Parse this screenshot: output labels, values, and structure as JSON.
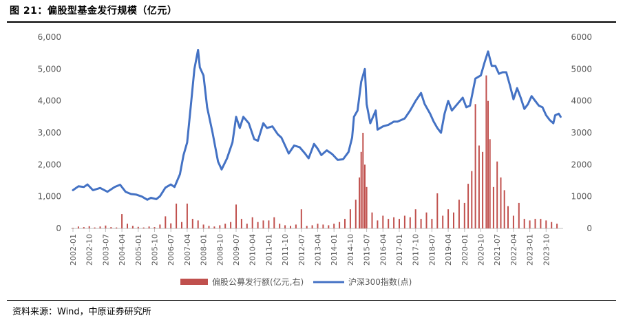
{
  "page": {
    "title": "图 21：偏股型基金发行规模（亿元）",
    "source": "资料来源：Wind，中原证券研究所"
  },
  "colors": {
    "line": "#4472C4",
    "bar": "#C0504D",
    "axis": "#BFBFBF",
    "text": "#595959"
  },
  "chart_data": {
    "type": "bar+line",
    "title": "偏股型基金发行规模（亿元）",
    "xlabel": "",
    "ylabel": "",
    "ylim_left": [
      0,
      6000
    ],
    "ylim_right": [
      0,
      6000
    ],
    "y_ticks_left": [
      "0",
      "1,000",
      "2,000",
      "3,000",
      "4,000",
      "5,000",
      "6,000"
    ],
    "y_ticks_right": [
      "0",
      "1000",
      "2000",
      "3000",
      "4000",
      "5000",
      "6000"
    ],
    "x_ticks": [
      "2002-01",
      "2002-10",
      "2003-07",
      "2004-04",
      "2005-01",
      "2005-10",
      "2006-07",
      "2007-04",
      "2008-01",
      "2008-10",
      "2009-07",
      "2010-04",
      "2011-01",
      "2011-10",
      "2012-07",
      "2013-04",
      "2014-01",
      "2014-10",
      "2015-07",
      "2016-04",
      "2017-01",
      "2017-10",
      "2018-07",
      "2019-04",
      "2020-01",
      "2020-10",
      "2021-07",
      "2022-04",
      "2023-01",
      "2023-10"
    ],
    "legend": [
      "偏股公募发行额(亿元,右)",
      "沪深300指数(点)"
    ],
    "legend_position": "bottom",
    "series": [
      {
        "name": "沪深300指数(点)",
        "type": "line",
        "axis": "left",
        "points": [
          [
            "2002-01",
            1200
          ],
          [
            "2002-04",
            1320
          ],
          [
            "2002-07",
            1300
          ],
          [
            "2002-09",
            1380
          ],
          [
            "2002-12",
            1200
          ],
          [
            "2003-04",
            1270
          ],
          [
            "2003-08",
            1150
          ],
          [
            "2003-12",
            1300
          ],
          [
            "2004-03",
            1370
          ],
          [
            "2004-06",
            1150
          ],
          [
            "2004-09",
            1080
          ],
          [
            "2004-12",
            1060
          ],
          [
            "2005-03",
            1000
          ],
          [
            "2005-06",
            900
          ],
          [
            "2005-08",
            960
          ],
          [
            "2005-11",
            920
          ],
          [
            "2006-01",
            1010
          ],
          [
            "2006-04",
            1280
          ],
          [
            "2006-07",
            1380
          ],
          [
            "2006-09",
            1300
          ],
          [
            "2006-12",
            1700
          ],
          [
            "2007-02",
            2300
          ],
          [
            "2007-04",
            2700
          ],
          [
            "2007-06",
            3850
          ],
          [
            "2007-08",
            5000
          ],
          [
            "2007-10",
            5600
          ],
          [
            "2007-11",
            5050
          ],
          [
            "2008-01",
            4800
          ],
          [
            "2008-03",
            3800
          ],
          [
            "2008-06",
            3000
          ],
          [
            "2008-09",
            2100
          ],
          [
            "2008-11",
            1850
          ],
          [
            "2009-02",
            2200
          ],
          [
            "2009-05",
            2700
          ],
          [
            "2009-07",
            3500
          ],
          [
            "2009-09",
            3150
          ],
          [
            "2009-11",
            3500
          ],
          [
            "2010-02",
            3300
          ],
          [
            "2010-05",
            2800
          ],
          [
            "2010-07",
            2750
          ],
          [
            "2010-10",
            3300
          ],
          [
            "2010-12",
            3150
          ],
          [
            "2011-03",
            3200
          ],
          [
            "2011-06",
            2950
          ],
          [
            "2011-08",
            2850
          ],
          [
            "2011-10",
            2600
          ],
          [
            "2011-12",
            2350
          ],
          [
            "2012-03",
            2600
          ],
          [
            "2012-06",
            2550
          ],
          [
            "2012-09",
            2350
          ],
          [
            "2012-11",
            2200
          ],
          [
            "2013-02",
            2650
          ],
          [
            "2013-04",
            2500
          ],
          [
            "2013-06",
            2300
          ],
          [
            "2013-09",
            2450
          ],
          [
            "2013-12",
            2330
          ],
          [
            "2014-03",
            2150
          ],
          [
            "2014-06",
            2170
          ],
          [
            "2014-09",
            2400
          ],
          [
            "2014-11",
            2850
          ],
          [
            "2014-12",
            3500
          ],
          [
            "2015-02",
            3700
          ],
          [
            "2015-04",
            4600
          ],
          [
            "2015-06",
            5000
          ],
          [
            "2015-07",
            3900
          ],
          [
            "2015-09",
            3300
          ],
          [
            "2015-12",
            3700
          ],
          [
            "2016-01",
            3100
          ],
          [
            "2016-04",
            3200
          ],
          [
            "2016-07",
            3250
          ],
          [
            "2016-10",
            3350
          ],
          [
            "2016-12",
            3350
          ],
          [
            "2017-04",
            3450
          ],
          [
            "2017-07",
            3700
          ],
          [
            "2017-10",
            4000
          ],
          [
            "2018-01",
            4250
          ],
          [
            "2018-03",
            3900
          ],
          [
            "2018-06",
            3600
          ],
          [
            "2018-08",
            3350
          ],
          [
            "2018-10",
            3150
          ],
          [
            "2018-12",
            3000
          ],
          [
            "2019-02",
            3600
          ],
          [
            "2019-04",
            4000
          ],
          [
            "2019-06",
            3700
          ],
          [
            "2019-09",
            3900
          ],
          [
            "2019-12",
            4100
          ],
          [
            "2020-02",
            3800
          ],
          [
            "2020-04",
            3850
          ],
          [
            "2020-07",
            4700
          ],
          [
            "2020-10",
            4800
          ],
          [
            "2020-12",
            5200
          ],
          [
            "2021-02",
            5550
          ],
          [
            "2021-04",
            5100
          ],
          [
            "2021-06",
            5100
          ],
          [
            "2021-08",
            4850
          ],
          [
            "2021-10",
            4900
          ],
          [
            "2021-12",
            4900
          ],
          [
            "2022-02",
            4500
          ],
          [
            "2022-04",
            4050
          ],
          [
            "2022-06",
            4400
          ],
          [
            "2022-08",
            4100
          ],
          [
            "2022-10",
            3750
          ],
          [
            "2022-12",
            3900
          ],
          [
            "2023-02",
            4150
          ],
          [
            "2023-04",
            4000
          ],
          [
            "2023-06",
            3850
          ],
          [
            "2023-08",
            3800
          ],
          [
            "2023-10",
            3550
          ],
          [
            "2023-12",
            3400
          ],
          [
            "2024-02",
            3300
          ],
          [
            "2024-03",
            3550
          ],
          [
            "2024-05",
            3600
          ],
          [
            "2024-06",
            3500
          ]
        ]
      },
      {
        "name": "偏股公募发行额(亿元,右)",
        "type": "bar",
        "axis": "right",
        "x": [
          "2002-01",
          "2002-04",
          "2002-07",
          "2002-10",
          "2003-01",
          "2003-04",
          "2003-07",
          "2003-10",
          "2004-01",
          "2004-04",
          "2004-07",
          "2004-10",
          "2005-01",
          "2005-04",
          "2005-07",
          "2005-10",
          "2006-01",
          "2006-04",
          "2006-07",
          "2006-10",
          "2007-01",
          "2007-04",
          "2007-07",
          "2007-10",
          "2008-01",
          "2008-04",
          "2008-07",
          "2008-10",
          "2009-01",
          "2009-04",
          "2009-07",
          "2009-10",
          "2010-01",
          "2010-04",
          "2010-07",
          "2010-10",
          "2011-01",
          "2011-04",
          "2011-07",
          "2011-10",
          "2012-01",
          "2012-04",
          "2012-07",
          "2012-10",
          "2013-01",
          "2013-04",
          "2013-07",
          "2013-10",
          "2014-01",
          "2014-04",
          "2014-07",
          "2014-10",
          "2015-01",
          "2015-03",
          "2015-04",
          "2015-05",
          "2015-06",
          "2015-07",
          "2015-10",
          "2016-01",
          "2016-04",
          "2016-07",
          "2016-10",
          "2017-01",
          "2017-04",
          "2017-07",
          "2017-10",
          "2018-01",
          "2018-04",
          "2018-07",
          "2018-10",
          "2019-01",
          "2019-04",
          "2019-07",
          "2019-10",
          "2020-01",
          "2020-03",
          "2020-05",
          "2020-07",
          "2020-09",
          "2020-11",
          "2021-01",
          "2021-02",
          "2021-03",
          "2021-05",
          "2021-07",
          "2021-09",
          "2021-11",
          "2022-01",
          "2022-04",
          "2022-07",
          "2022-10",
          "2023-01",
          "2023-04",
          "2023-07",
          "2023-10",
          "2024-01",
          "2024-04"
        ],
        "values": [
          20,
          60,
          40,
          70,
          30,
          60,
          90,
          40,
          30,
          450,
          150,
          80,
          50,
          30,
          60,
          40,
          120,
          380,
          160,
          780,
          200,
          780,
          300,
          250,
          120,
          80,
          60,
          100,
          150,
          200,
          750,
          300,
          150,
          350,
          200,
          250,
          250,
          350,
          150,
          100,
          80,
          120,
          600,
          80,
          100,
          150,
          120,
          100,
          150,
          200,
          300,
          600,
          900,
          1600,
          2400,
          3000,
          2000,
          1300,
          500,
          250,
          400,
          300,
          350,
          300,
          400,
          350,
          600,
          300,
          500,
          300,
          1100,
          400,
          600,
          500,
          900,
          800,
          1400,
          1800,
          3900,
          2600,
          2400,
          4800,
          4000,
          2800,
          1300,
          2100,
          1600,
          1200,
          700,
          400,
          800,
          300,
          250,
          300,
          300,
          250,
          200,
          150
        ]
      }
    ]
  }
}
